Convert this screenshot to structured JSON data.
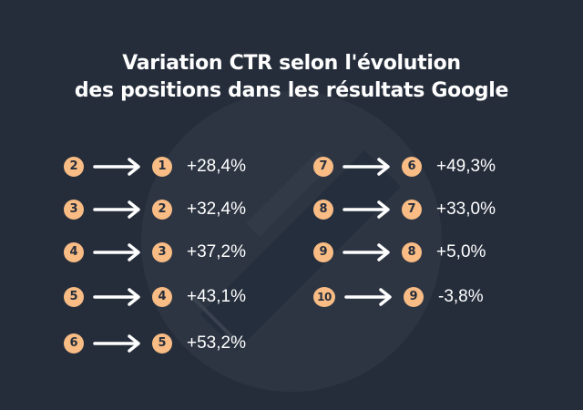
{
  "title": {
    "line1": "Variation CTR selon l'évolution",
    "line2": "des positions dans les résultats Google"
  },
  "colors": {
    "background": "#252d3b",
    "badge": "#f8bc84",
    "text": "#ffffff"
  },
  "left_column": [
    {
      "from": "2",
      "to": "1",
      "change": "+28,4%"
    },
    {
      "from": "3",
      "to": "2",
      "change": "+32,4%"
    },
    {
      "from": "4",
      "to": "3",
      "change": "+37,2%"
    },
    {
      "from": "5",
      "to": "4",
      "change": "+43,1%"
    },
    {
      "from": "6",
      "to": "5",
      "change": "+53,2%"
    }
  ],
  "right_column": [
    {
      "from": "7",
      "to": "6",
      "change": "+49,3%"
    },
    {
      "from": "8",
      "to": "7",
      "change": "+33,0%"
    },
    {
      "from": "9",
      "to": "8",
      "change": "+5,0%"
    },
    {
      "from": "10",
      "to": "9",
      "change": "-3,8%"
    }
  ],
  "icons": {
    "arrow": "right-arrow-icon",
    "watermark": "brand-watermark-icon"
  }
}
